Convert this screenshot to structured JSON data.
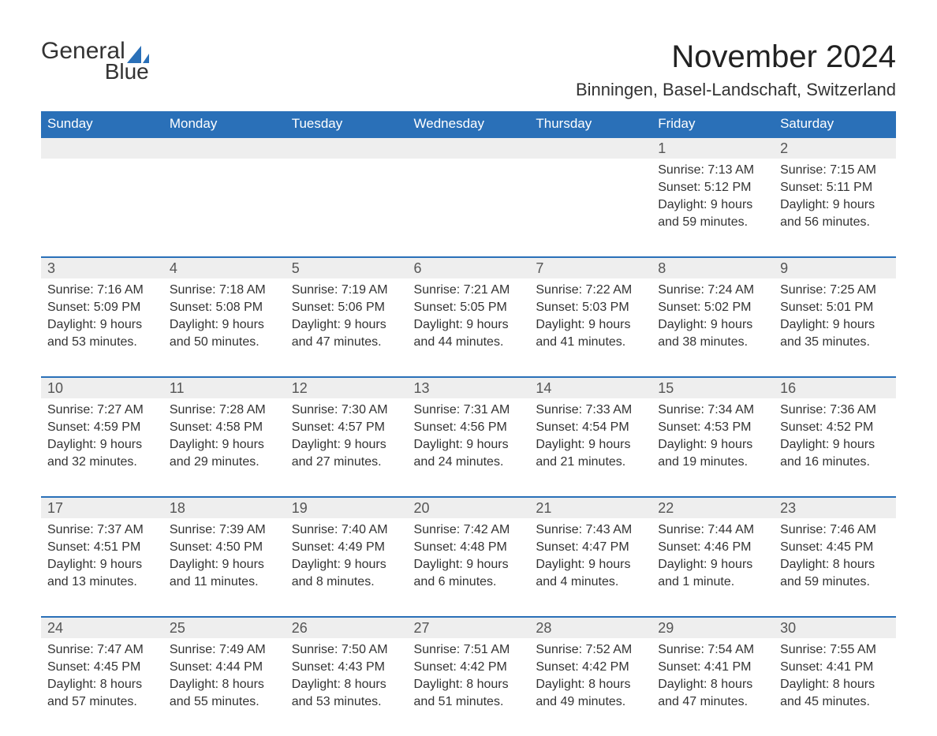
{
  "brand": {
    "general": "General",
    "blue": "Blue",
    "logo_color_primary": "#4a4a4a",
    "logo_color_accent": "#2a70b8"
  },
  "title": "November 2024",
  "location": "Binningen, Basel-Landschaft, Switzerland",
  "colors": {
    "header_bg": "#2a70b8",
    "header_text": "#ffffff",
    "band_bg": "#eeeeee",
    "band_border": "#2a70b8",
    "text": "#333333",
    "page_bg": "#ffffff"
  },
  "typography": {
    "title_fontsize": 40,
    "location_fontsize": 22,
    "dow_fontsize": 17,
    "daynum_fontsize": 18,
    "body_fontsize": 16
  },
  "days_of_week": [
    "Sunday",
    "Monday",
    "Tuesday",
    "Wednesday",
    "Thursday",
    "Friday",
    "Saturday"
  ],
  "weeks": [
    [
      null,
      null,
      null,
      null,
      null,
      {
        "n": "1",
        "sunrise": "Sunrise: 7:13 AM",
        "sunset": "Sunset: 5:12 PM",
        "d1": "Daylight: 9 hours",
        "d2": "and 59 minutes."
      },
      {
        "n": "2",
        "sunrise": "Sunrise: 7:15 AM",
        "sunset": "Sunset: 5:11 PM",
        "d1": "Daylight: 9 hours",
        "d2": "and 56 minutes."
      }
    ],
    [
      {
        "n": "3",
        "sunrise": "Sunrise: 7:16 AM",
        "sunset": "Sunset: 5:09 PM",
        "d1": "Daylight: 9 hours",
        "d2": "and 53 minutes."
      },
      {
        "n": "4",
        "sunrise": "Sunrise: 7:18 AM",
        "sunset": "Sunset: 5:08 PM",
        "d1": "Daylight: 9 hours",
        "d2": "and 50 minutes."
      },
      {
        "n": "5",
        "sunrise": "Sunrise: 7:19 AM",
        "sunset": "Sunset: 5:06 PM",
        "d1": "Daylight: 9 hours",
        "d2": "and 47 minutes."
      },
      {
        "n": "6",
        "sunrise": "Sunrise: 7:21 AM",
        "sunset": "Sunset: 5:05 PM",
        "d1": "Daylight: 9 hours",
        "d2": "and 44 minutes."
      },
      {
        "n": "7",
        "sunrise": "Sunrise: 7:22 AM",
        "sunset": "Sunset: 5:03 PM",
        "d1": "Daylight: 9 hours",
        "d2": "and 41 minutes."
      },
      {
        "n": "8",
        "sunrise": "Sunrise: 7:24 AM",
        "sunset": "Sunset: 5:02 PM",
        "d1": "Daylight: 9 hours",
        "d2": "and 38 minutes."
      },
      {
        "n": "9",
        "sunrise": "Sunrise: 7:25 AM",
        "sunset": "Sunset: 5:01 PM",
        "d1": "Daylight: 9 hours",
        "d2": "and 35 minutes."
      }
    ],
    [
      {
        "n": "10",
        "sunrise": "Sunrise: 7:27 AM",
        "sunset": "Sunset: 4:59 PM",
        "d1": "Daylight: 9 hours",
        "d2": "and 32 minutes."
      },
      {
        "n": "11",
        "sunrise": "Sunrise: 7:28 AM",
        "sunset": "Sunset: 4:58 PM",
        "d1": "Daylight: 9 hours",
        "d2": "and 29 minutes."
      },
      {
        "n": "12",
        "sunrise": "Sunrise: 7:30 AM",
        "sunset": "Sunset: 4:57 PM",
        "d1": "Daylight: 9 hours",
        "d2": "and 27 minutes."
      },
      {
        "n": "13",
        "sunrise": "Sunrise: 7:31 AM",
        "sunset": "Sunset: 4:56 PM",
        "d1": "Daylight: 9 hours",
        "d2": "and 24 minutes."
      },
      {
        "n": "14",
        "sunrise": "Sunrise: 7:33 AM",
        "sunset": "Sunset: 4:54 PM",
        "d1": "Daylight: 9 hours",
        "d2": "and 21 minutes."
      },
      {
        "n": "15",
        "sunrise": "Sunrise: 7:34 AM",
        "sunset": "Sunset: 4:53 PM",
        "d1": "Daylight: 9 hours",
        "d2": "and 19 minutes."
      },
      {
        "n": "16",
        "sunrise": "Sunrise: 7:36 AM",
        "sunset": "Sunset: 4:52 PM",
        "d1": "Daylight: 9 hours",
        "d2": "and 16 minutes."
      }
    ],
    [
      {
        "n": "17",
        "sunrise": "Sunrise: 7:37 AM",
        "sunset": "Sunset: 4:51 PM",
        "d1": "Daylight: 9 hours",
        "d2": "and 13 minutes."
      },
      {
        "n": "18",
        "sunrise": "Sunrise: 7:39 AM",
        "sunset": "Sunset: 4:50 PM",
        "d1": "Daylight: 9 hours",
        "d2": "and 11 minutes."
      },
      {
        "n": "19",
        "sunrise": "Sunrise: 7:40 AM",
        "sunset": "Sunset: 4:49 PM",
        "d1": "Daylight: 9 hours",
        "d2": "and 8 minutes."
      },
      {
        "n": "20",
        "sunrise": "Sunrise: 7:42 AM",
        "sunset": "Sunset: 4:48 PM",
        "d1": "Daylight: 9 hours",
        "d2": "and 6 minutes."
      },
      {
        "n": "21",
        "sunrise": "Sunrise: 7:43 AM",
        "sunset": "Sunset: 4:47 PM",
        "d1": "Daylight: 9 hours",
        "d2": "and 4 minutes."
      },
      {
        "n": "22",
        "sunrise": "Sunrise: 7:44 AM",
        "sunset": "Sunset: 4:46 PM",
        "d1": "Daylight: 9 hours",
        "d2": "and 1 minute."
      },
      {
        "n": "23",
        "sunrise": "Sunrise: 7:46 AM",
        "sunset": "Sunset: 4:45 PM",
        "d1": "Daylight: 8 hours",
        "d2": "and 59 minutes."
      }
    ],
    [
      {
        "n": "24",
        "sunrise": "Sunrise: 7:47 AM",
        "sunset": "Sunset: 4:45 PM",
        "d1": "Daylight: 8 hours",
        "d2": "and 57 minutes."
      },
      {
        "n": "25",
        "sunrise": "Sunrise: 7:49 AM",
        "sunset": "Sunset: 4:44 PM",
        "d1": "Daylight: 8 hours",
        "d2": "and 55 minutes."
      },
      {
        "n": "26",
        "sunrise": "Sunrise: 7:50 AM",
        "sunset": "Sunset: 4:43 PM",
        "d1": "Daylight: 8 hours",
        "d2": "and 53 minutes."
      },
      {
        "n": "27",
        "sunrise": "Sunrise: 7:51 AM",
        "sunset": "Sunset: 4:42 PM",
        "d1": "Daylight: 8 hours",
        "d2": "and 51 minutes."
      },
      {
        "n": "28",
        "sunrise": "Sunrise: 7:52 AM",
        "sunset": "Sunset: 4:42 PM",
        "d1": "Daylight: 8 hours",
        "d2": "and 49 minutes."
      },
      {
        "n": "29",
        "sunrise": "Sunrise: 7:54 AM",
        "sunset": "Sunset: 4:41 PM",
        "d1": "Daylight: 8 hours",
        "d2": "and 47 minutes."
      },
      {
        "n": "30",
        "sunrise": "Sunrise: 7:55 AM",
        "sunset": "Sunset: 4:41 PM",
        "d1": "Daylight: 8 hours",
        "d2": "and 45 minutes."
      }
    ]
  ]
}
